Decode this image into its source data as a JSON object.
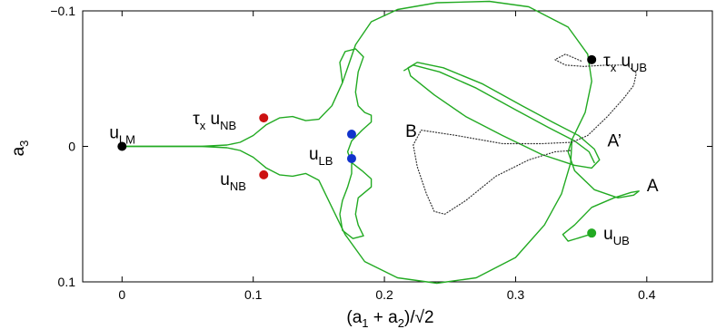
{
  "chart_data": {
    "type": "line",
    "title": "",
    "xlabel": "(a1 + a2)/√2",
    "ylabel": "a3",
    "xlim": [
      -0.03,
      0.45
    ],
    "ylim": [
      0.1,
      -0.1
    ],
    "y_axis_reversed": true,
    "grid": false,
    "x_ticks": [
      {
        "value": 0,
        "label": "0"
      },
      {
        "value": 0.1,
        "label": "0.1"
      },
      {
        "value": 0.2,
        "label": "0.2"
      },
      {
        "value": 0.3,
        "label": "0.3"
      },
      {
        "value": 0.4,
        "label": "0.4"
      }
    ],
    "y_ticks": [
      {
        "value": -0.1,
        "label": "−0.1"
      },
      {
        "value": 0,
        "label": "0"
      },
      {
        "value": 0.1,
        "label": "0.1"
      }
    ],
    "colors": {
      "green_curve": "#22aa22",
      "dotted_curve": "#333333",
      "black_point": "#000000",
      "red_point": "#cc1111",
      "blue_point": "#1133cc",
      "green_point": "#22aa22"
    },
    "series": [
      {
        "id": "heteroclinic-green",
        "style": "solid",
        "color": "#22aa22",
        "segments": [
          [
            [
              0,
              0
            ],
            [
              0.03,
              0
            ],
            [
              0.06,
              0
            ],
            [
              0.08,
              -0.001
            ],
            [
              0.09,
              -0.003
            ],
            [
              0.1,
              -0.008
            ],
            [
              0.11,
              -0.016
            ],
            [
              0.12,
              -0.021
            ],
            [
              0.13,
              -0.022
            ],
            [
              0.14,
              -0.019
            ],
            [
              0.15,
              -0.02
            ],
            [
              0.16,
              -0.03
            ],
            [
              0.168,
              -0.047
            ],
            [
              0.178,
              -0.075
            ],
            [
              0.19,
              -0.092
            ],
            [
              0.21,
              -0.101
            ],
            [
              0.24,
              -0.106
            ],
            [
              0.28,
              -0.107
            ],
            [
              0.31,
              -0.103
            ],
            [
              0.34,
              -0.088
            ],
            [
              0.355,
              -0.068
            ],
            [
              0.358,
              -0.048
            ],
            [
              0.353,
              -0.025
            ],
            [
              0.343,
              -0.005
            ],
            [
              0.34,
              0.004
            ],
            [
              0.345,
              0.018
            ],
            [
              0.36,
              0.032
            ],
            [
              0.378,
              0.038
            ],
            [
              0.39,
              0.036
            ],
            [
              0.394,
              0.033
            ],
            [
              0.388,
              0.034
            ],
            [
              0.375,
              0.038
            ],
            [
              0.358,
              0.045
            ],
            [
              0.345,
              0.058
            ],
            [
              0.336,
              0.065
            ],
            [
              0.34,
              0.07
            ],
            [
              0.35,
              0.067
            ],
            [
              0.36,
              0.064
            ]
          ],
          [
            [
              0,
              0
            ],
            [
              0.03,
              0
            ],
            [
              0.06,
              0
            ],
            [
              0.08,
              0.001
            ],
            [
              0.09,
              0.003
            ],
            [
              0.1,
              0.008
            ],
            [
              0.11,
              0.016
            ],
            [
              0.12,
              0.021
            ],
            [
              0.13,
              0.022
            ],
            [
              0.14,
              0.02
            ],
            [
              0.15,
              0.025
            ],
            [
              0.16,
              0.045
            ],
            [
              0.17,
              0.065
            ],
            [
              0.185,
              0.085
            ],
            [
              0.21,
              0.097
            ],
            [
              0.24,
              0.101
            ],
            [
              0.27,
              0.097
            ],
            [
              0.3,
              0.082
            ],
            [
              0.322,
              0.058
            ],
            [
              0.335,
              0.035
            ],
            [
              0.342,
              0.012
            ],
            [
              0.343,
              -0.005
            ]
          ],
          [
            [
              0.168,
              -0.047
            ],
            [
              0.166,
              -0.062
            ],
            [
              0.17,
              -0.07
            ],
            [
              0.178,
              -0.072
            ],
            [
              0.184,
              -0.066
            ],
            [
              0.18,
              -0.055
            ],
            [
              0.178,
              -0.04
            ],
            [
              0.18,
              -0.03
            ],
            [
              0.185,
              -0.025
            ],
            [
              0.19,
              -0.023
            ],
            [
              0.19,
              -0.018
            ],
            [
              0.183,
              -0.012
            ],
            [
              0.175,
              -0.004
            ],
            [
              0.172,
              0.004
            ],
            [
              0.175,
              0.012
            ],
            [
              0.183,
              0.018
            ],
            [
              0.19,
              0.024
            ],
            [
              0.19,
              0.03
            ],
            [
              0.18,
              0.038
            ],
            [
              0.178,
              0.05
            ],
            [
              0.18,
              0.058
            ],
            [
              0.184,
              0.066
            ],
            [
              0.176,
              0.068
            ],
            [
              0.168,
              0.062
            ],
            [
              0.166,
              0.05
            ],
            [
              0.168,
              0.04
            ],
            [
              0.172,
              0.03
            ],
            [
              0.175,
              0.02
            ],
            [
              0.175,
              0.004
            ]
          ],
          [
            [
              0.218,
              -0.058
            ],
            [
              0.225,
              -0.062
            ],
            [
              0.245,
              -0.058
            ],
            [
              0.275,
              -0.046
            ],
            [
              0.305,
              -0.03
            ],
            [
              0.328,
              -0.018
            ],
            [
              0.348,
              -0.008
            ],
            [
              0.36,
              0.002
            ],
            [
              0.364,
              0.01
            ],
            [
              0.358,
              0.016
            ],
            [
              0.345,
              0.014
            ],
            [
              0.32,
              0.006
            ],
            [
              0.29,
              -0.008
            ],
            [
              0.262,
              -0.022
            ],
            [
              0.238,
              -0.038
            ],
            [
              0.22,
              -0.052
            ],
            [
              0.218,
              -0.058
            ]
          ],
          [
            [
              0.215,
              -0.056
            ],
            [
              0.222,
              -0.06
            ],
            [
              0.242,
              -0.055
            ],
            [
              0.27,
              -0.043
            ],
            [
              0.3,
              -0.027
            ],
            [
              0.325,
              -0.014
            ],
            [
              0.345,
              -0.004
            ],
            [
              0.356,
              0.004
            ],
            [
              0.36,
              0.012
            ]
          ]
        ]
      },
      {
        "id": "dotted-orbit",
        "style": "dotted",
        "color": "#333333",
        "segments": [
          [
            [
              0.35,
              -0.063
            ],
            [
              0.338,
              -0.068
            ],
            [
              0.33,
              -0.064
            ],
            [
              0.338,
              -0.06
            ],
            [
              0.352,
              -0.059
            ],
            [
              0.37,
              -0.06
            ],
            [
              0.385,
              -0.06
            ],
            [
              0.392,
              -0.054
            ],
            [
              0.39,
              -0.045
            ],
            [
              0.382,
              -0.035
            ],
            [
              0.37,
              -0.022
            ],
            [
              0.355,
              -0.008
            ],
            [
              0.343,
              -0.003
            ],
            [
              0.32,
              -0.002
            ],
            [
              0.29,
              -0.002
            ],
            [
              0.255,
              -0.008
            ],
            [
              0.228,
              -0.012
            ],
            [
              0.222,
              -0.001
            ],
            [
              0.225,
              0.015
            ],
            [
              0.232,
              0.035
            ],
            [
              0.238,
              0.048
            ],
            [
              0.246,
              0.05
            ],
            [
              0.262,
              0.04
            ],
            [
              0.285,
              0.022
            ],
            [
              0.31,
              0.01
            ],
            [
              0.33,
              0.004
            ],
            [
              0.343,
              0.003
            ]
          ]
        ]
      }
    ],
    "points": [
      {
        "id": "u-lm",
        "x": 0,
        "y": 0,
        "color": "#000000",
        "label_main": "u",
        "label_sub": "LM"
      },
      {
        "id": "u-nb-upper",
        "x": 0.108,
        "y": -0.021,
        "color": "#cc1111",
        "label_tau": "τ",
        "label_tau_sub": "x",
        "label_main": "u",
        "label_sub": "NB"
      },
      {
        "id": "u-nb-lower",
        "x": 0.108,
        "y": 0.021,
        "color": "#cc1111",
        "label_main": "u",
        "label_sub": "NB"
      },
      {
        "id": "u-lb-upper",
        "x": 0.175,
        "y": -0.009,
        "color": "#1133cc"
      },
      {
        "id": "u-lb-lower",
        "x": 0.175,
        "y": 0.009,
        "color": "#1133cc",
        "label_main": "u",
        "label_sub": "LB"
      },
      {
        "id": "u-ub-upper",
        "x": 0.358,
        "y": -0.064,
        "color": "#000000",
        "label_tau": "τ",
        "label_tau_sub": "x",
        "label_main": "u",
        "label_sub": "UB"
      },
      {
        "id": "u-ub-lower",
        "x": 0.358,
        "y": 0.064,
        "color": "#22aa22",
        "label_main": "u",
        "label_sub": "UB"
      }
    ],
    "annotations": [
      {
        "id": "label-b",
        "text": "B",
        "x": 0.216,
        "y": -0.007
      },
      {
        "id": "label-a-prime",
        "text": "A’",
        "x": 0.37,
        "y": 0.0
      },
      {
        "id": "label-a",
        "text": "A",
        "x": 0.4,
        "y": 0.033
      }
    ]
  }
}
